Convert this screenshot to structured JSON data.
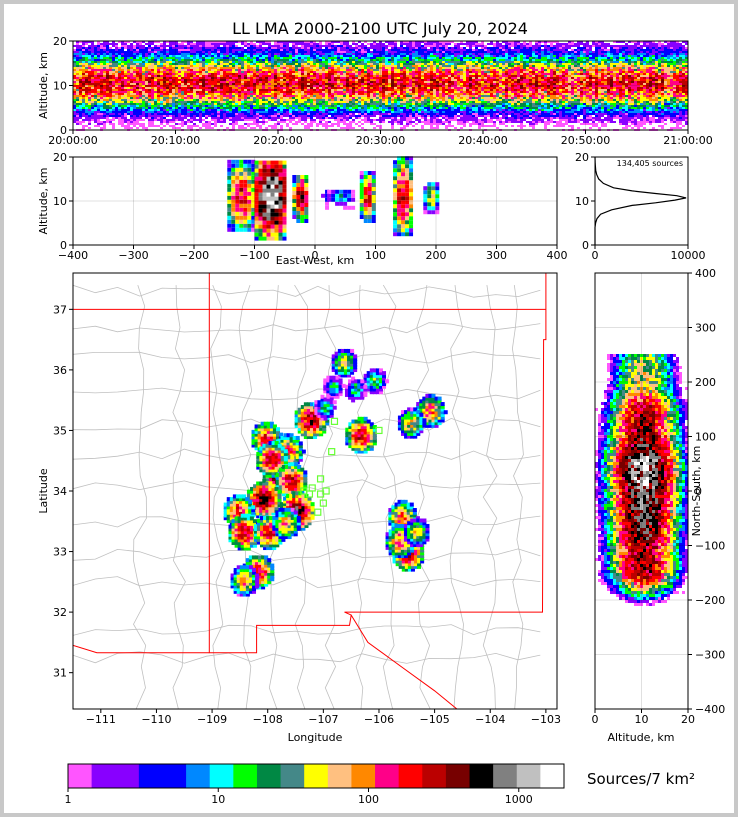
{
  "title": "LL LMA 2000-2100 UTC July 20, 2024",
  "colors": {
    "frame": "#c8c8c8",
    "border": "#ff0000",
    "counties": "#c0c0c0",
    "stations": "#66ff33",
    "curve": "#000000"
  },
  "colorbar": {
    "label": "Sources/7 km²",
    "colors": [
      "#ff55ff",
      "#8800ff",
      "#8800ff",
      "#0000ff",
      "#0000ff",
      "#0088ff",
      "#00ffff",
      "#00ff00",
      "#008844",
      "#448888",
      "#ffff00",
      "#ffc080",
      "#ff8800",
      "#ff0088",
      "#ff0000",
      "#bb0000",
      "#770000",
      "#000000",
      "#808080",
      "#c0c0c0",
      "#ffffff"
    ],
    "ticks": [
      {
        "label": "1",
        "value": 1
      },
      {
        "label": "10",
        "value": 10
      },
      {
        "label": "100",
        "value": 100
      },
      {
        "label": "1000",
        "value": 1000
      }
    ],
    "min": 1,
    "max": 2000
  },
  "chart_data": [
    {
      "id": "time_height",
      "type": "heatmap",
      "ylabel": "Altitude, km",
      "xlim": [
        "20:00:00",
        "21:00:00"
      ],
      "ylim": [
        0,
        20
      ],
      "x_ticks": [
        "20:00:00",
        "20:10:00",
        "20:20:00",
        "20:30:00",
        "20:40:00",
        "20:50:00",
        "21:00:00"
      ],
      "y_ticks": [
        0,
        10,
        20
      ],
      "source_layer_km": [
        5,
        15
      ],
      "peak_altitude_km": 10.5
    },
    {
      "id": "ew_height",
      "type": "heatmap",
      "xlabel": "East-West, km",
      "ylabel": "Altitude, km",
      "xlim": [
        -400,
        400
      ],
      "ylim": [
        0,
        20
      ],
      "x_ticks": [
        -400,
        -300,
        -200,
        -100,
        0,
        100,
        200,
        300,
        400
      ],
      "y_ticks": [
        0,
        10,
        20
      ],
      "clusters": [
        {
          "x": -125,
          "width": 40,
          "zmin": 3,
          "zmax": 19,
          "peak_count": 250
        },
        {
          "x": -75,
          "width": 50,
          "zmin": 1,
          "zmax": 19,
          "peak_count": 1500
        },
        {
          "x": -25,
          "width": 25,
          "zmin": 5,
          "zmax": 15,
          "peak_count": 400
        },
        {
          "x": 15,
          "width": 10,
          "zmin": 8,
          "zmax": 12,
          "peak_count": 10
        },
        {
          "x": 40,
          "width": 40,
          "zmin": 8,
          "zmax": 12,
          "peak_count": 15
        },
        {
          "x": 85,
          "width": 22,
          "zmin": 5,
          "zmax": 16,
          "peak_count": 250
        },
        {
          "x": 143,
          "width": 28,
          "zmin": 2,
          "zmax": 20,
          "peak_count": 300
        },
        {
          "x": 190,
          "width": 22,
          "zmin": 7,
          "zmax": 14,
          "peak_count": 60
        }
      ]
    },
    {
      "id": "altitude_histogram",
      "type": "line",
      "annotation": "134,405 sources",
      "xlim": [
        0,
        10000
      ],
      "ylim": [
        0,
        20
      ],
      "x_ticks": [
        0,
        10000
      ],
      "y_ticks": [
        0,
        10,
        20
      ],
      "points": [
        [
          0,
          0
        ],
        [
          0,
          4
        ],
        [
          60,
          5
        ],
        [
          220,
          6
        ],
        [
          600,
          7
        ],
        [
          1800,
          8
        ],
        [
          4000,
          9
        ],
        [
          6500,
          9.6
        ],
        [
          8600,
          10.2
        ],
        [
          9800,
          10.7
        ],
        [
          8800,
          11.2
        ],
        [
          6500,
          11.7
        ],
        [
          4000,
          12.3
        ],
        [
          2000,
          13
        ],
        [
          900,
          14
        ],
        [
          400,
          15
        ],
        [
          180,
          16
        ],
        [
          70,
          17
        ],
        [
          20,
          18.5
        ],
        [
          0,
          20
        ]
      ]
    },
    {
      "id": "plan_view",
      "type": "heatmap",
      "xlabel": "Longitude",
      "ylabel": "Latitude",
      "xlim": [
        -111.5,
        -102.8
      ],
      "ylim": [
        30.4,
        37.6
      ],
      "x_ticks": [
        -111,
        -110,
        -109,
        -108,
        -107,
        -106,
        -105,
        -104,
        -103
      ],
      "y_ticks": [
        31,
        32,
        33,
        34,
        35,
        36,
        37
      ],
      "stations": [
        [
          -106.8,
          35.15
        ],
        [
          -106.0,
          35.0
        ],
        [
          -106.85,
          34.65
        ],
        [
          -107.05,
          34.2
        ],
        [
          -107.2,
          34.05
        ],
        [
          -107.35,
          34.0
        ],
        [
          -107.25,
          33.95
        ],
        [
          -107.05,
          33.95
        ],
        [
          -107.0,
          33.8
        ],
        [
          -106.95,
          34.0
        ],
        [
          -107.1,
          33.65
        ]
      ],
      "storms": [
        {
          "lon": -107.25,
          "lat": 35.2,
          "peak": 400
        },
        {
          "lon": -106.35,
          "lat": 34.95,
          "peak": 300
        },
        {
          "lon": -105.1,
          "lat": 35.35,
          "peak": 150
        },
        {
          "lon": -105.45,
          "lat": 35.15,
          "peak": 80
        },
        {
          "lon": -106.65,
          "lat": 36.15,
          "peak": 60
        },
        {
          "lon": -106.1,
          "lat": 35.85,
          "peak": 30
        },
        {
          "lon": -106.45,
          "lat": 35.7,
          "peak": 20
        },
        {
          "lon": -106.85,
          "lat": 35.75,
          "peak": 15
        },
        {
          "lon": -107.0,
          "lat": 35.4,
          "peak": 20
        },
        {
          "lon": -108.05,
          "lat": 34.9,
          "peak": 200
        },
        {
          "lon": -107.65,
          "lat": 34.7,
          "peak": 150
        },
        {
          "lon": -107.8,
          "lat": 34.35,
          "peak": 800
        },
        {
          "lon": -107.95,
          "lat": 34.55,
          "peak": 300
        },
        {
          "lon": -107.6,
          "lat": 34.2,
          "peak": 300
        },
        {
          "lon": -108.1,
          "lat": 33.9,
          "peak": 500
        },
        {
          "lon": -107.5,
          "lat": 33.7,
          "peak": 600
        },
        {
          "lon": -108.55,
          "lat": 33.7,
          "peak": 200
        },
        {
          "lon": -108.45,
          "lat": 33.35,
          "peak": 300
        },
        {
          "lon": -108.0,
          "lat": 33.35,
          "peak": 250
        },
        {
          "lon": -107.7,
          "lat": 33.5,
          "peak": 100
        },
        {
          "lon": -108.2,
          "lat": 32.7,
          "peak": 250
        },
        {
          "lon": -108.45,
          "lat": 32.55,
          "peak": 100
        },
        {
          "lon": -105.6,
          "lat": 33.6,
          "peak": 150
        },
        {
          "lon": -105.5,
          "lat": 33.0,
          "peak": 300
        },
        {
          "lon": -105.65,
          "lat": 33.2,
          "peak": 150
        },
        {
          "lon": -105.35,
          "lat": 33.35,
          "peak": 60
        }
      ]
    },
    {
      "id": "ns_height",
      "type": "heatmap",
      "xlabel": "Altitude, km",
      "ylabel": "North-South, km",
      "xlim": [
        0,
        20
      ],
      "ylim": [
        -400,
        400
      ],
      "x_ticks": [
        0,
        10,
        20
      ],
      "y_ticks": [
        -400,
        -300,
        -200,
        -100,
        0,
        100,
        200,
        300,
        400
      ]
    }
  ]
}
